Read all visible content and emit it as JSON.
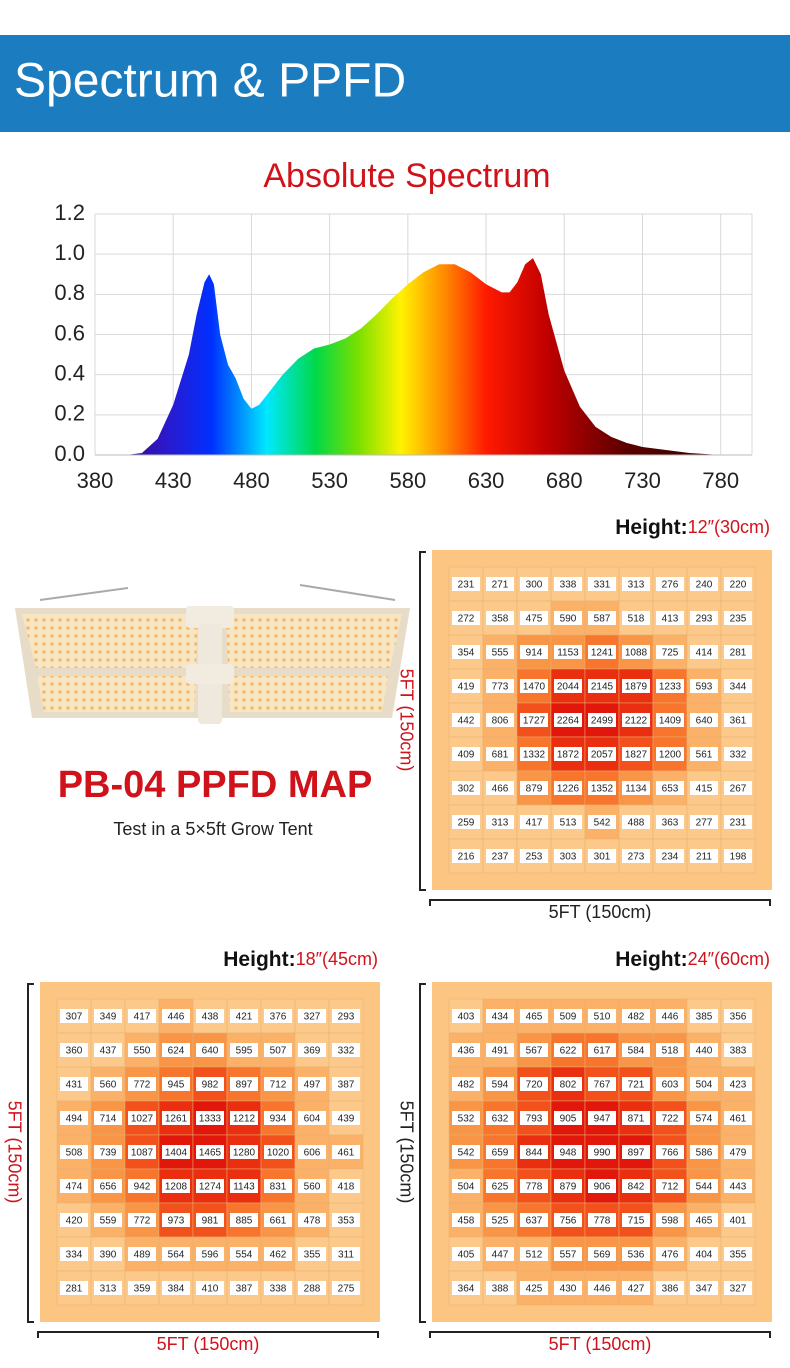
{
  "header": {
    "title": "Spectrum & PPFD"
  },
  "chart_data": {
    "type": "area",
    "title": "Absolute Spectrum",
    "x": [
      400,
      410,
      420,
      430,
      440,
      445,
      450,
      453,
      456,
      460,
      465,
      470,
      475,
      480,
      485,
      490,
      500,
      510,
      520,
      530,
      540,
      550,
      560,
      570,
      580,
      590,
      600,
      610,
      620,
      630,
      640,
      645,
      650,
      655,
      660,
      665,
      670,
      680,
      690,
      700,
      710,
      720,
      730,
      740,
      750,
      760,
      770,
      780,
      790
    ],
    "values": [
      0,
      0.01,
      0.08,
      0.25,
      0.5,
      0.7,
      0.86,
      0.9,
      0.85,
      0.6,
      0.45,
      0.38,
      0.28,
      0.23,
      0.25,
      0.3,
      0.4,
      0.48,
      0.53,
      0.55,
      0.58,
      0.63,
      0.7,
      0.78,
      0.85,
      0.91,
      0.95,
      0.95,
      0.91,
      0.85,
      0.81,
      0.81,
      0.86,
      0.95,
      0.98,
      0.9,
      0.7,
      0.42,
      0.24,
      0.14,
      0.09,
      0.06,
      0.04,
      0.03,
      0.02,
      0.01,
      0.005,
      0,
      0
    ],
    "xlim": [
      380,
      800
    ],
    "xticks": [
      380,
      430,
      480,
      530,
      580,
      630,
      680,
      730,
      780
    ],
    "ylim": [
      0,
      1.2
    ],
    "yticks": [
      {
        "value": 0,
        "label": "0.0"
      },
      0.2,
      0.4,
      0.6,
      0.8,
      {
        "value": 1,
        "label": "1.0"
      },
      1.2
    ],
    "grid": true
  },
  "product": {
    "title": "PB-04 PPFD MAP",
    "subtitle": "Test in a 5×5ft Grow Tent"
  },
  "maps": [
    {
      "height_label": "Height:",
      "height_value": "12″(30cm)",
      "side_label": "5FT (150cm)",
      "bottom_label": "5FT (150cm)",
      "rows": [
        [
          231,
          271,
          300,
          338,
          331,
          313,
          276,
          240,
          220
        ],
        [
          272,
          358,
          475,
          590,
          587,
          518,
          413,
          293,
          235
        ],
        [
          354,
          555,
          914,
          1153,
          1241,
          1088,
          725,
          414,
          281
        ],
        [
          419,
          773,
          1470,
          2044,
          2145,
          1879,
          1233,
          593,
          344
        ],
        [
          442,
          806,
          1727,
          2264,
          2499,
          2122,
          1409,
          640,
          361
        ],
        [
          409,
          681,
          1332,
          1872,
          2057,
          1827,
          1200,
          561,
          332
        ],
        [
          302,
          466,
          879,
          1226,
          1352,
          1134,
          653,
          415,
          267
        ],
        [
          259,
          313,
          417,
          513,
          542,
          488,
          363,
          277,
          231
        ],
        [
          216,
          237,
          253,
          303,
          301,
          273,
          234,
          211,
          198
        ]
      ]
    },
    {
      "height_label": "Height:",
      "height_value": "18″(45cm)",
      "side_label": "5FT (150cm)",
      "bottom_label": "5FT (150cm)",
      "rows": [
        [
          307,
          349,
          417,
          446,
          438,
          421,
          376,
          327,
          293
        ],
        [
          360,
          437,
          550,
          624,
          640,
          595,
          507,
          369,
          332
        ],
        [
          431,
          560,
          772,
          945,
          982,
          897,
          712,
          497,
          387
        ],
        [
          494,
          714,
          1027,
          1261,
          1333,
          1212,
          934,
          604,
          439
        ],
        [
          508,
          739,
          1087,
          1404,
          1465,
          1280,
          1020,
          606,
          461
        ],
        [
          474,
          656,
          942,
          1208,
          1274,
          1143,
          831,
          560,
          418
        ],
        [
          420,
          559,
          772,
          973,
          981,
          885,
          661,
          478,
          353
        ],
        [
          334,
          390,
          489,
          564,
          596,
          554,
          462,
          355,
          311
        ],
        [
          281,
          313,
          359,
          384,
          410,
          387,
          338,
          288,
          275
        ]
      ]
    },
    {
      "height_label": "Height:",
      "height_value": "24″(60cm)",
      "side_label": "5FT (150cm)",
      "bottom_label": "5FT (150cm)",
      "rows": [
        [
          403,
          434,
          465,
          509,
          510,
          482,
          446,
          385,
          356
        ],
        [
          436,
          491,
          567,
          622,
          617,
          584,
          518,
          440,
          383
        ],
        [
          482,
          594,
          720,
          802,
          767,
          721,
          603,
          504,
          423
        ],
        [
          532,
          632,
          793,
          905,
          947,
          871,
          722,
          574,
          461
        ],
        [
          542,
          659,
          844,
          948,
          990,
          897,
          766,
          586,
          479
        ],
        [
          504,
          625,
          778,
          879,
          906,
          842,
          712,
          544,
          443
        ],
        [
          458,
          525,
          637,
          756,
          778,
          715,
          598,
          465,
          401
        ],
        [
          405,
          447,
          512,
          557,
          569,
          536,
          476,
          404,
          355
        ],
        [
          364,
          388,
          425,
          430,
          446,
          427,
          386,
          347,
          327
        ]
      ]
    }
  ]
}
